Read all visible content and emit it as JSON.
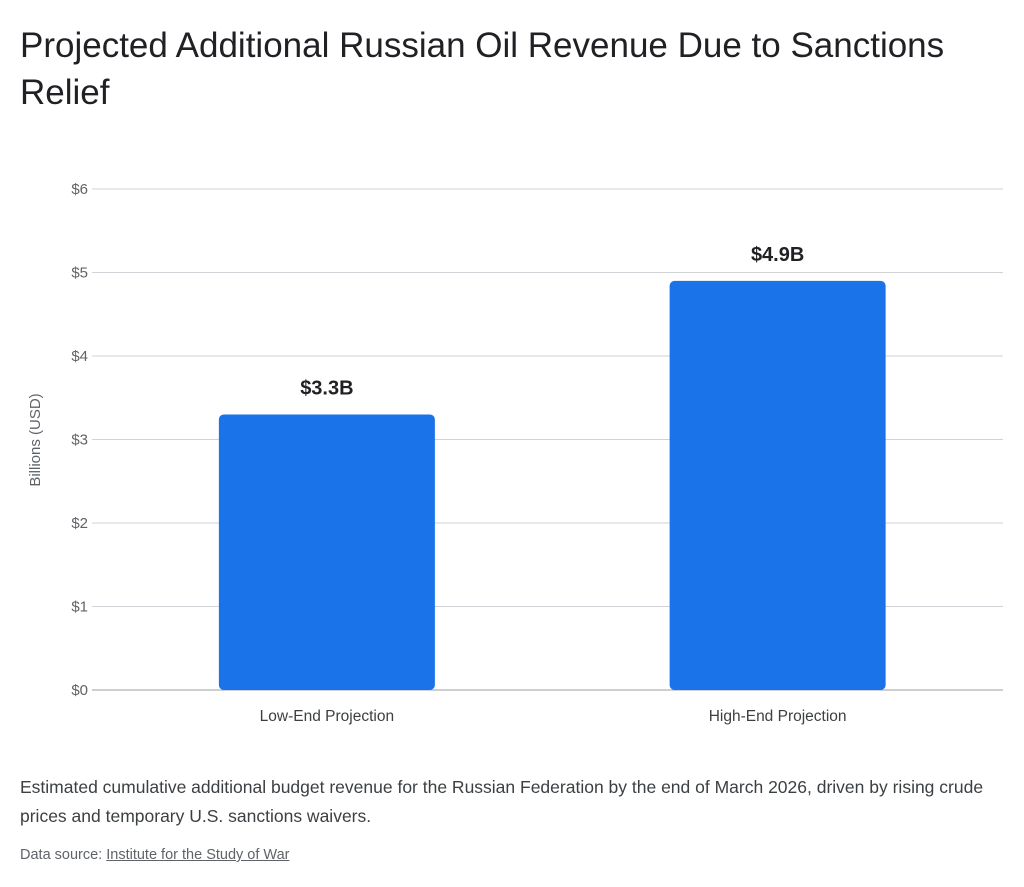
{
  "chart_data": {
    "type": "bar",
    "title": "Projected Additional Russian Oil Revenue Due to Sanctions Relief",
    "categories": [
      "Low-End Projection",
      "High-End Projection"
    ],
    "values": [
      3.3,
      4.9
    ],
    "data_labels": [
      "$3.3B",
      "$4.9B"
    ],
    "xlabel": "",
    "ylabel": "Billions (USD)",
    "ylim": [
      0,
      6
    ],
    "yticks": [
      0,
      1,
      2,
      3,
      4,
      5,
      6
    ],
    "ytick_labels": [
      "$0",
      "$1",
      "$2",
      "$3",
      "$4",
      "$5",
      "$6"
    ],
    "grid": true,
    "bar_color": "#1a73e8"
  },
  "caption": "Estimated cumulative additional budget revenue for the Russian Federation by the end of March 2026, driven by rising crude prices and temporary U.S. sanctions waivers.",
  "source": {
    "prefix": "Data source: ",
    "link_text": "Institute for the Study of War"
  }
}
